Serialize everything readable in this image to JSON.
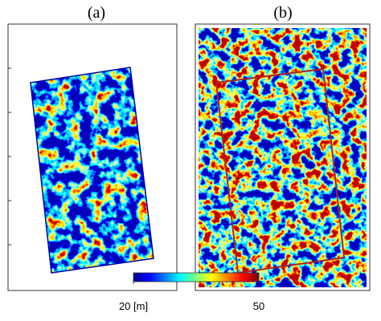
{
  "panels": [
    {
      "label": "(a)"
    },
    {
      "label": "(b)"
    }
  ],
  "colorbar": {
    "colormap": "jet",
    "range": [
      20,
      50
    ],
    "ticks": [
      {
        "value": 20,
        "label": "20 [m]"
      },
      50
    ]
  }
}
